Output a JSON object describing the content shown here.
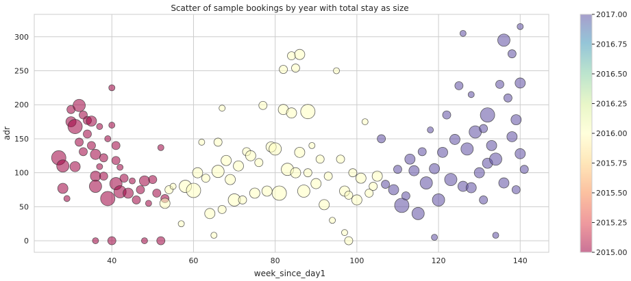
{
  "chart_data": {
    "type": "scatter",
    "title": "Scatter of sample bookings by year with total stay as size",
    "xlabel": "week_since_day1",
    "ylabel": "adr",
    "xlim": [
      21,
      147
    ],
    "ylim": [
      -17,
      333
    ],
    "xticks": [
      40,
      60,
      80,
      100,
      120,
      140
    ],
    "yticks": [
      0,
      50,
      100,
      150,
      200,
      250,
      300
    ],
    "grid": true,
    "colorbar": {
      "label": "",
      "range": [
        2015.0,
        2017.0
      ],
      "ticks": [
        "2015.00",
        "2015.25",
        "2015.50",
        "2015.75",
        "2016.00",
        "2016.25",
        "2016.50",
        "2016.75",
        "2017.00"
      ],
      "colormap": "Spectral",
      "colors": {
        "2015.00": "#9e0142",
        "2016.00": "#ffffbf",
        "2017.00": "#5e4fa2"
      }
    },
    "series": [
      {
        "group": "2015.00",
        "color": "#9e0142",
        "points": [
          [
            27,
            122,
            6
          ],
          [
            28,
            110,
            5
          ],
          [
            28,
            77,
            4
          ],
          [
            29,
            62,
            2
          ],
          [
            30,
            193,
            3
          ],
          [
            30,
            175,
            4
          ],
          [
            31,
            168,
            6
          ],
          [
            31,
            109,
            4
          ],
          [
            32,
            199,
            5
          ],
          [
            32,
            145,
            3
          ],
          [
            33,
            185,
            3
          ],
          [
            33,
            131,
            3
          ],
          [
            34,
            177,
            3
          ],
          [
            34,
            157,
            3
          ],
          [
            35,
            176,
            4
          ],
          [
            35,
            140,
            3
          ],
          [
            36,
            127,
            4
          ],
          [
            36,
            95,
            4
          ],
          [
            36,
            80,
            5
          ],
          [
            36,
            0,
            2
          ],
          [
            37,
            168,
            2
          ],
          [
            37,
            109,
            2
          ],
          [
            38,
            122,
            3
          ],
          [
            38,
            95,
            3
          ],
          [
            39,
            62,
            6
          ],
          [
            39,
            150,
            2
          ],
          [
            40,
            225,
            2
          ],
          [
            40,
            170,
            2
          ],
          [
            40,
            0,
            3
          ],
          [
            41,
            118,
            3
          ],
          [
            41,
            84,
            5
          ],
          [
            41,
            140,
            3
          ],
          [
            42,
            72,
            5
          ],
          [
            42,
            108,
            2
          ],
          [
            43,
            92,
            3
          ],
          [
            44,
            70,
            4
          ],
          [
            45,
            88,
            2
          ],
          [
            46,
            60,
            3
          ],
          [
            47,
            75,
            3
          ],
          [
            48,
            88,
            4
          ],
          [
            48,
            0,
            2
          ],
          [
            49,
            55,
            2
          ],
          [
            50,
            90,
            3
          ],
          [
            51,
            70,
            3
          ],
          [
            52,
            137,
            2
          ],
          [
            52,
            0,
            3
          ],
          [
            53,
            62,
            3
          ]
        ]
      },
      {
        "group": "2016.00",
        "color": "#ffffbf",
        "points": [
          [
            53,
            55,
            4
          ],
          [
            54,
            75,
            3
          ],
          [
            55,
            80,
            2
          ],
          [
            57,
            25,
            2
          ],
          [
            58,
            80,
            5
          ],
          [
            60,
            74,
            6
          ],
          [
            61,
            100,
            4
          ],
          [
            62,
            145,
            2
          ],
          [
            63,
            92,
            3
          ],
          [
            64,
            40,
            4
          ],
          [
            65,
            8,
            2
          ],
          [
            66,
            145,
            3
          ],
          [
            66,
            102,
            5
          ],
          [
            67,
            46,
            3
          ],
          [
            67,
            195,
            2
          ],
          [
            68,
            118,
            4
          ],
          [
            69,
            90,
            4
          ],
          [
            70,
            60,
            5
          ],
          [
            71,
            110,
            4
          ],
          [
            72,
            60,
            3
          ],
          [
            73,
            131,
            3
          ],
          [
            74,
            125,
            4
          ],
          [
            75,
            70,
            4
          ],
          [
            76,
            115,
            3
          ],
          [
            77,
            199,
            3
          ],
          [
            78,
            73,
            4
          ],
          [
            79,
            138,
            4
          ],
          [
            80,
            135,
            5
          ],
          [
            81,
            70,
            6
          ],
          [
            82,
            193,
            4
          ],
          [
            82,
            252,
            3
          ],
          [
            83,
            105,
            5
          ],
          [
            84,
            188,
            4
          ],
          [
            84,
            272,
            3
          ],
          [
            85,
            100,
            4
          ],
          [
            85,
            254,
            3
          ],
          [
            86,
            274,
            4
          ],
          [
            86,
            130,
            4
          ],
          [
            87,
            73,
            5
          ],
          [
            88,
            190,
            6
          ],
          [
            88,
            100,
            3
          ],
          [
            89,
            140,
            2
          ],
          [
            90,
            84,
            4
          ],
          [
            91,
            120,
            3
          ],
          [
            92,
            53,
            4
          ],
          [
            93,
            95,
            3
          ],
          [
            94,
            30,
            2
          ],
          [
            95,
            250,
            2
          ],
          [
            96,
            120,
            3
          ],
          [
            97,
            73,
            4
          ],
          [
            97,
            12,
            2
          ],
          [
            98,
            67,
            3
          ],
          [
            98,
            0,
            3
          ],
          [
            99,
            100,
            3
          ],
          [
            100,
            60,
            4
          ],
          [
            101,
            92,
            4
          ],
          [
            102,
            175,
            2
          ],
          [
            103,
            70,
            3
          ],
          [
            104,
            80,
            3
          ],
          [
            105,
            95,
            4
          ]
        ]
      },
      {
        "group": "2017.00",
        "color": "#5e4fa2",
        "points": [
          [
            106,
            150,
            3
          ],
          [
            107,
            83,
            3
          ],
          [
            109,
            75,
            4
          ],
          [
            110,
            105,
            3
          ],
          [
            111,
            52,
            6
          ],
          [
            112,
            66,
            3
          ],
          [
            113,
            120,
            4
          ],
          [
            114,
            103,
            4
          ],
          [
            115,
            40,
            5
          ],
          [
            116,
            131,
            3
          ],
          [
            117,
            85,
            5
          ],
          [
            118,
            163,
            2
          ],
          [
            119,
            106,
            4
          ],
          [
            119,
            5,
            2
          ],
          [
            120,
            60,
            5
          ],
          [
            121,
            130,
            4
          ],
          [
            122,
            185,
            3
          ],
          [
            123,
            90,
            5
          ],
          [
            124,
            149,
            4
          ],
          [
            125,
            228,
            3
          ],
          [
            126,
            305,
            2
          ],
          [
            126,
            80,
            4
          ],
          [
            127,
            135,
            5
          ],
          [
            128,
            215,
            2
          ],
          [
            128,
            78,
            4
          ],
          [
            129,
            160,
            5
          ],
          [
            130,
            100,
            4
          ],
          [
            131,
            165,
            3
          ],
          [
            131,
            60,
            3
          ],
          [
            132,
            185,
            6
          ],
          [
            132,
            114,
            4
          ],
          [
            133,
            140,
            4
          ],
          [
            134,
            120,
            5
          ],
          [
            134,
            8,
            2
          ],
          [
            135,
            230,
            3
          ],
          [
            136,
            85,
            4
          ],
          [
            136,
            295,
            5
          ],
          [
            137,
            210,
            3
          ],
          [
            138,
            153,
            4
          ],
          [
            138,
            275,
            3
          ],
          [
            139,
            178,
            4
          ],
          [
            139,
            75,
            3
          ],
          [
            140,
            315,
            2
          ],
          [
            140,
            232,
            4
          ],
          [
            140,
            128,
            4
          ],
          [
            141,
            105,
            3
          ]
        ]
      }
    ]
  }
}
